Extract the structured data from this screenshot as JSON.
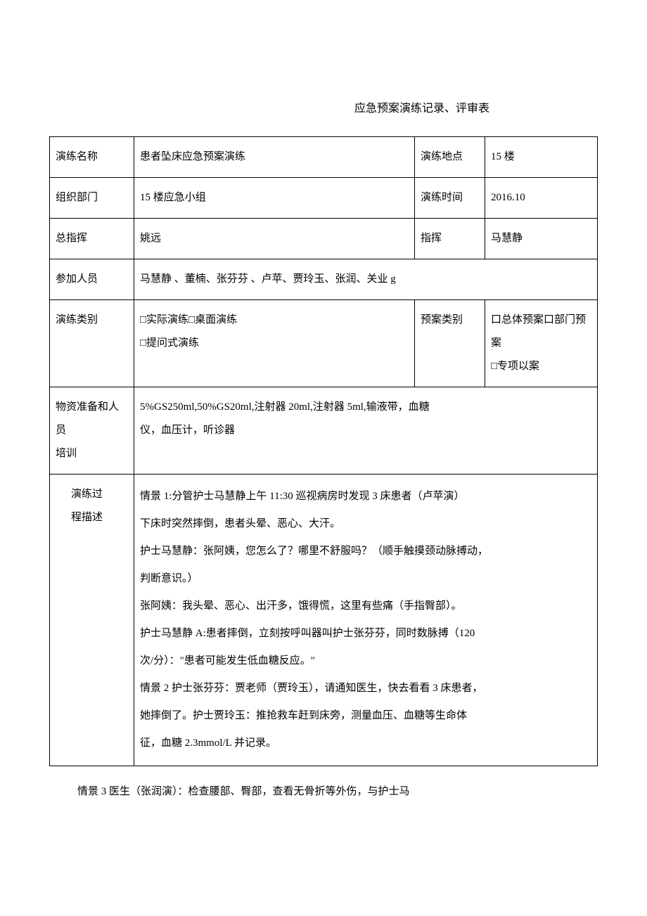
{
  "title": "应急预案演练记录、评审表",
  "rows": {
    "r1": {
      "label": "演练名称",
      "value": "  患者坠床应急预案演练",
      "label2": "演练地点",
      "value2": "    15 楼"
    },
    "r2": {
      "label": "组织部门",
      "value": "15 楼应急小组",
      "label2": "演练时间",
      "value2": "2016.10"
    },
    "r3": {
      "label": "总指挥",
      "value": "姚远",
      "label2": "指挥",
      "value2": "马慧静"
    },
    "r4": {
      "label": "参加人员",
      "value": "马慧静 、董楠、张芬芬 、卢苹、贾玲玉、张润、关业 g"
    },
    "r5": {
      "label": "演练类别",
      "value_line1": "□实际演练□桌面演练",
      "value_line2": "□提问式演练",
      "label2": "预案类别",
      "value2_line1": "口总体预案口部门预",
      "value2_line2": "案",
      "value2_line3": "□专项以案"
    },
    "r6": {
      "label_line1": "物资准备和人员",
      "label_line2": "培训",
      "value_line1": "5%GS250ml,50%GS20ml,注射器 20ml,注射器 5ml,输液带，血糖",
      "value_line2": "仪，血压计，听诊器"
    },
    "r7": {
      "label_line1": "演练过",
      "label_line2": "程描述",
      "body": "情景 1:分管护士马慧静上午 11:30 巡视病房时发现 3 床患者（卢苹演）\n下床时突然摔倒，患者头晕、恶心、大汗。\n护士马慧静：张阿姨，您怎么了？哪里不舒服吗？（顺手触摸颈动脉搏动，\n判断意识。）\n张阿姨：我头晕、恶心、出汗多，饿得慌，这里有些痛（手指臀部）。\n护士马慧静 A:患者摔倒，立刻按呼叫器叫护士张芬芬，同时数脉搏（120\n次/分）：\"患者可能发生低血糖反应。\"\n情景 2 护士张芬芬：贾老师（贾玲玉），请通知医生，快去看看 3 床患者，\n她摔倒了。护士贾玲玉：推抢救车赶到床旁，测量血压、血糖等生命体\n征，血糖 2.3mmol/L 并记录。"
    }
  },
  "footer": "情景 3 医生（张润演）：检查腰部、臀部，查看无骨折等外伤，与护士马"
}
